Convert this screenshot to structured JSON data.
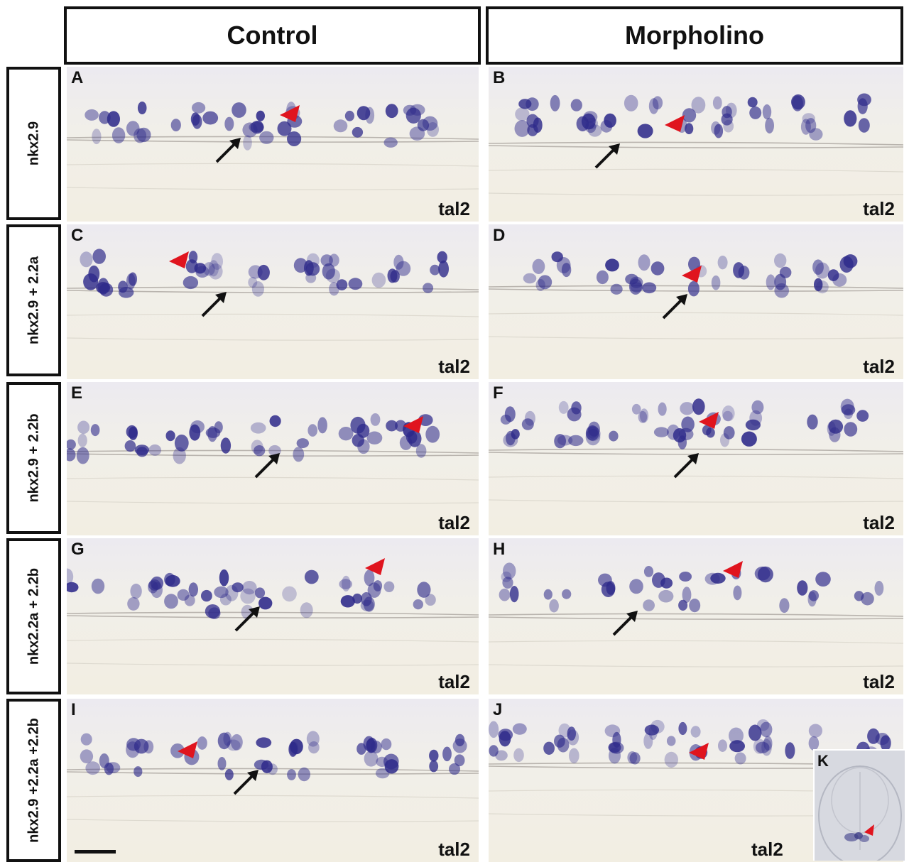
{
  "column_headers": [
    "Control",
    "Morpholino"
  ],
  "row_labels": [
    "nkx2.9",
    "nkx2.9 + 2.2a",
    "nkx2.9 + 2.2b",
    "nkx2.2a + 2.2b",
    "nkx2.9 +2.2a +2.2b"
  ],
  "panels": [
    {
      "letter": "A",
      "marker": "tal2"
    },
    {
      "letter": "B",
      "marker": "tal2"
    },
    {
      "letter": "C",
      "marker": "tal2"
    },
    {
      "letter": "D",
      "marker": "tal2"
    },
    {
      "letter": "E",
      "marker": "tal2"
    },
    {
      "letter": "F",
      "marker": "tal2"
    },
    {
      "letter": "G",
      "marker": "tal2"
    },
    {
      "letter": "H",
      "marker": "tal2"
    },
    {
      "letter": "I",
      "marker": "tal2"
    },
    {
      "letter": "J",
      "marker": "tal2"
    }
  ],
  "inset": {
    "letter": "K"
  },
  "colors": {
    "stain": "#2e2a8a",
    "arrowhead": "#e0141e",
    "arrow": "#111111",
    "tissue": "#f2eee2"
  }
}
